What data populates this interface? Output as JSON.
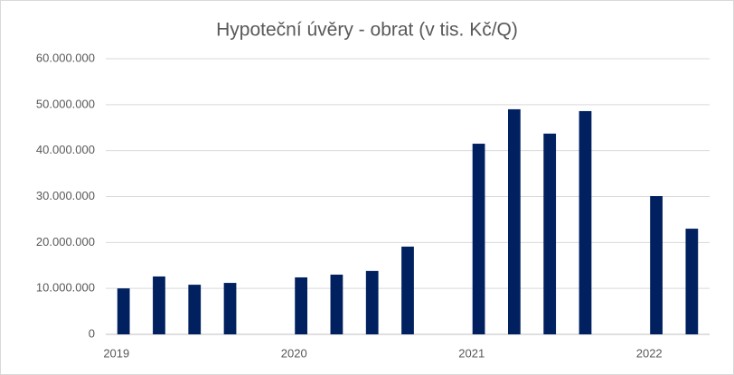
{
  "chart_data": {
    "type": "bar",
    "title": "Hypoteční úvěry - obrat (v tis. Kč/Q)",
    "categories": [
      "2019",
      null,
      null,
      null,
      null,
      "2020",
      null,
      null,
      null,
      null,
      "2021",
      null,
      null,
      null,
      null,
      "2022",
      null
    ],
    "values": [
      10000000,
      12600000,
      10800000,
      11200000,
      null,
      12400000,
      13000000,
      13800000,
      19100000,
      null,
      41500000,
      49000000,
      43700000,
      48600000,
      null,
      30100000,
      23000000
    ],
    "color": "#002060",
    "ylim": [
      0,
      60000000
    ],
    "yticks": [
      0,
      {
        "value": 10000000,
        "label": "10.000.000"
      },
      {
        "value": 20000000,
        "label": "20.000.000"
      },
      {
        "value": 30000000,
        "label": "30.000.000"
      },
      {
        "value": 40000000,
        "label": "40.000.000"
      },
      {
        "value": 50000000,
        "label": "50.000.000"
      },
      {
        "value": 60000000,
        "label": "60.000.000"
      }
    ],
    "grid": true
  }
}
